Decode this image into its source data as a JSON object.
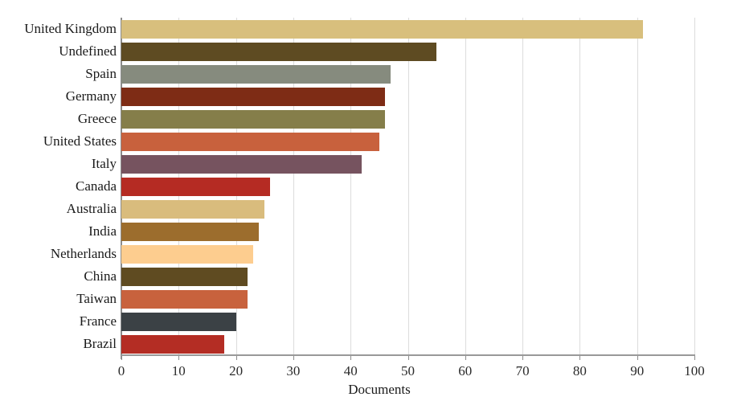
{
  "chart_data": {
    "type": "bar",
    "orientation": "horizontal",
    "title": "",
    "xlabel": "Documents",
    "ylabel": "",
    "xlim": [
      0,
      100
    ],
    "xticks": [
      0,
      10,
      20,
      30,
      40,
      50,
      60,
      70,
      80,
      90,
      100
    ],
    "grid": "vertical",
    "legend": "none",
    "categories": [
      "United Kingdom",
      "Undefined",
      "Spain",
      "Germany",
      "Greece",
      "United States",
      "Italy",
      "Canada",
      "Australia",
      "India",
      "Netherlands",
      "China",
      "Taiwan",
      "France",
      "Brazil"
    ],
    "values": [
      91,
      55,
      47,
      46,
      46,
      45,
      42,
      26,
      25,
      24,
      23,
      22,
      22,
      20,
      18
    ],
    "bar_colors": [
      "#d8bf7d",
      "#5e4b22",
      "#868b7e",
      "#7e2c15",
      "#857e4a",
      "#c8613d",
      "#76535f",
      "#b52b23",
      "#d9bc7d",
      "#9c6d2d",
      "#fdcd8f",
      "#5f4b21",
      "#c8623d",
      "#3b4145",
      "#b42d24"
    ],
    "gridline_color": "#dcdcdc",
    "axis_line_color": "#999999",
    "y_axis_line_color": "#8c8c8c",
    "tick_color": "#8c8c8c",
    "text_color": "#1a1a1a"
  }
}
